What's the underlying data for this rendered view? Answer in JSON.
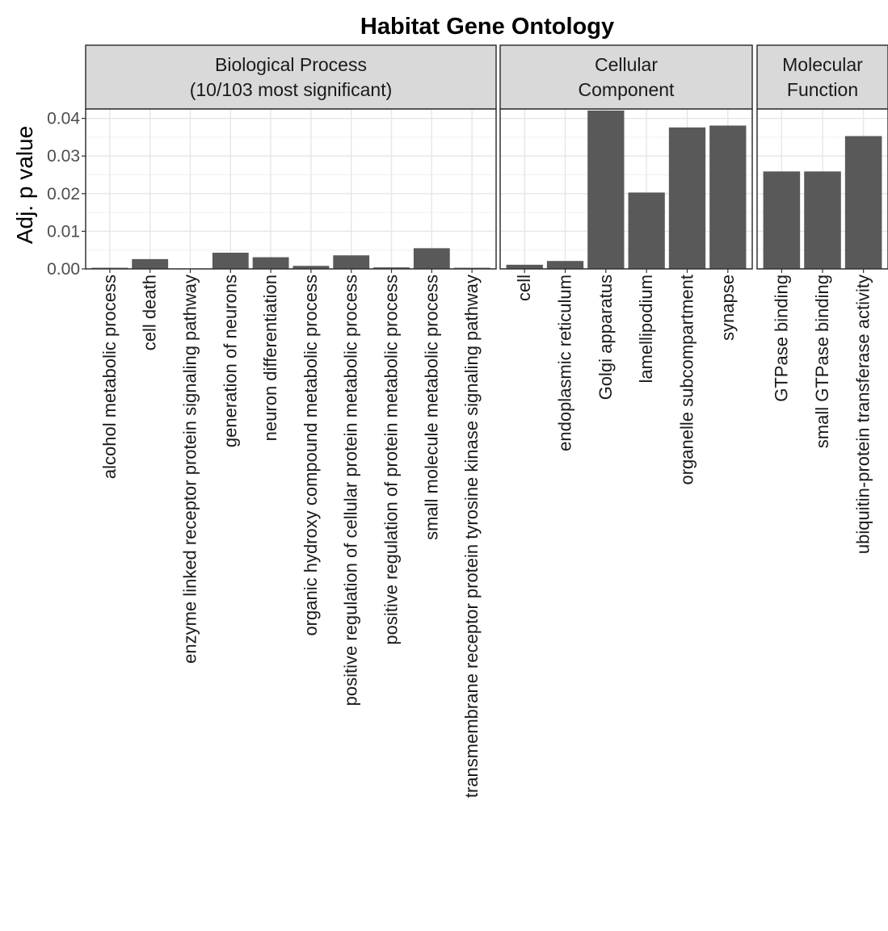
{
  "chart_data": {
    "type": "bar",
    "title": "Habitat Gene Ontology",
    "ylabel": "Adj. p value",
    "xlabel": "",
    "ylim": [
      0,
      0.0425
    ],
    "yticks": [
      "0.00",
      "0.01",
      "0.02",
      "0.03",
      "0.04"
    ],
    "ytick_values": [
      0,
      0.01,
      0.02,
      0.03,
      0.04
    ],
    "grid": true,
    "bar_color": "#595959",
    "strip_color": "#d9d9d9",
    "facets": [
      {
        "strip": [
          "Biological Process",
          "(10/103 most significant)"
        ],
        "categories": [
          "alcohol metabolic process",
          "cell death",
          "enzyme linked receptor protein signaling pathway",
          "generation of neurons",
          "neuron differentiation",
          "organic hydroxy compound metabolic process",
          "positive regulation of cellular protein metabolic process",
          "positive regulation of protein metabolic process",
          "small molecule metabolic process",
          "transmembrane receptor protein tyrosine kinase signaling pathway"
        ],
        "values": [
          0.0003,
          0.0026,
          0.0001,
          0.0043,
          0.0031,
          0.0008,
          0.0036,
          0.0004,
          0.0055,
          0.0003
        ]
      },
      {
        "strip": [
          "Cellular",
          "Component"
        ],
        "categories": [
          "cell",
          "endoplasmic reticulum",
          "Golgi apparatus",
          "lamellipodium",
          "organelle subcompartment",
          "synapse"
        ],
        "values": [
          0.0011,
          0.0021,
          0.0421,
          0.0203,
          0.0376,
          0.0381
        ]
      },
      {
        "strip": [
          "Molecular",
          "Function"
        ],
        "categories": [
          "GTPase binding",
          "small GTPase binding",
          "ubiquitin-protein transferase activity"
        ],
        "values": [
          0.0259,
          0.0259,
          0.0353
        ]
      }
    ]
  }
}
